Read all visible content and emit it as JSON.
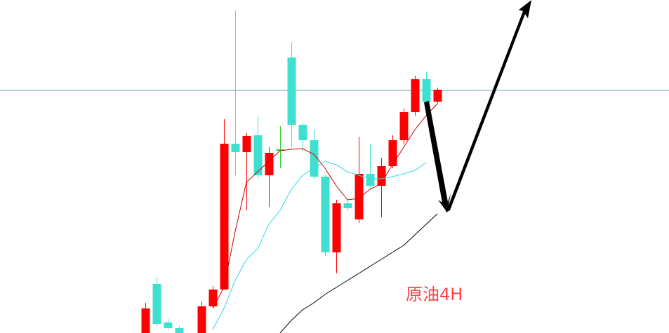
{
  "chart_data": {
    "type": "candlestick",
    "annotation": "原油4H",
    "annotation_color": "#ff4444",
    "ylim": [
      0,
      475
    ],
    "up_color": "#ff0000",
    "down_color": "#40e0d0",
    "price_line": 346,
    "price_line_color": "#5b9bb5",
    "candles": [
      {
        "open": 0,
        "high": 43,
        "low": 0,
        "close": 35
      },
      {
        "open": 70,
        "high": 80,
        "low": 10,
        "close": 13
      },
      {
        "open": 15,
        "high": 20,
        "low": 5,
        "close": 7
      },
      {
        "open": 7,
        "high": 10,
        "low": 0,
        "close": 0
      },
      null,
      {
        "open": 0,
        "high": 45,
        "low": 0,
        "close": 38
      },
      {
        "open": 38,
        "high": 67,
        "low": 35,
        "close": 62
      },
      {
        "open": 62,
        "high": 305,
        "low": 62,
        "close": 270
      },
      {
        "open": 270,
        "high": 460,
        "low": 225,
        "close": 258
      },
      {
        "open": 258,
        "high": 285,
        "low": 175,
        "close": 281
      },
      {
        "open": 282,
        "high": 310,
        "low": 220,
        "close": 225
      },
      {
        "open": 225,
        "high": 265,
        "low": 180,
        "close": 257
      },
      {
        "open": 260,
        "high": 295,
        "low": 235,
        "close": 262,
        "color": "#33cc33"
      },
      {
        "open": 393,
        "high": 415,
        "low": 265,
        "close": 297
      },
      {
        "open": 297,
        "high": 300,
        "low": 260,
        "close": 275
      },
      {
        "open": 275,
        "high": 290,
        "low": 220,
        "close": 223
      },
      {
        "open": 223,
        "high": 225,
        "low": 110,
        "close": 115
      },
      {
        "open": 115,
        "high": 190,
        "low": 85,
        "close": 185
      },
      {
        "open": 185,
        "high": 190,
        "low": 175,
        "close": 178
      },
      {
        "open": 162,
        "high": 280,
        "low": 157,
        "close": 227
      },
      {
        "open": 227,
        "high": 270,
        "low": 205,
        "close": 210
      },
      {
        "open": 210,
        "high": 250,
        "low": 165,
        "close": 238
      },
      {
        "open": 238,
        "high": 282,
        "low": 235,
        "close": 275
      },
      {
        "open": 275,
        "high": 320,
        "low": 270,
        "close": 315
      },
      {
        "open": 315,
        "high": 367,
        "low": 310,
        "close": 362
      },
      {
        "open": 362,
        "high": 372,
        "low": 325,
        "close": 330
      },
      {
        "open": 330,
        "high": 350,
        "low": 327,
        "close": 347
      }
    ],
    "series": [
      {
        "color": "#cc0000",
        "values": [
          null,
          null,
          null,
          null,
          null,
          null,
          35,
          65,
          145,
          215,
          230,
          245,
          260,
          262,
          263,
          255,
          235,
          210,
          190,
          192,
          205,
          213,
          240,
          265,
          290,
          310,
          327
        ]
      },
      {
        "color": "#33d6e6",
        "values": [
          null,
          null,
          null,
          null,
          null,
          null,
          5,
          35,
          75,
          105,
          120,
          155,
          175,
          205,
          225,
          235,
          245,
          240,
          230,
          225,
          220,
          220,
          223,
          227,
          232,
          243,
          null
        ]
      },
      {
        "color": "#000000",
        "values": [
          null,
          null,
          null,
          null,
          null,
          null,
          null,
          null,
          null,
          null,
          null,
          null,
          0,
          18,
          33,
          43,
          55,
          65,
          75,
          85,
          95,
          105,
          115,
          125,
          140,
          155,
          170
        ]
      }
    ]
  }
}
